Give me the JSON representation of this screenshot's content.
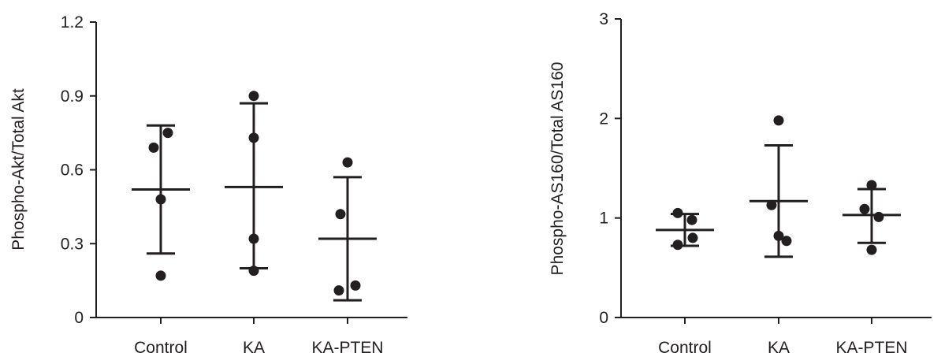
{
  "chart_data": [
    {
      "type": "scatter",
      "title": "",
      "xlabel": "",
      "ylabel": "Phospho-Akt/Total Akt",
      "ylim": [
        0,
        1.2
      ],
      "yticks": [
        "0",
        "0.3",
        "0.6",
        "0.9",
        "1.2"
      ],
      "ytick_values": [
        0,
        0.3,
        0.6,
        0.9,
        1.2
      ],
      "categories": [
        "Control",
        "KA",
        "KA-PTEN"
      ],
      "groups": [
        {
          "category": "Control",
          "points": [
            0.69,
            0.75,
            0.48,
            0.17
          ],
          "mean": 0.52,
          "upper": 0.78,
          "lower": 0.26
        },
        {
          "category": "KA",
          "points": [
            0.9,
            0.73,
            0.32,
            0.19
          ],
          "mean": 0.53,
          "upper": 0.87,
          "lower": 0.2
        },
        {
          "category": "KA-PTEN",
          "points": [
            0.63,
            0.42,
            0.11,
            0.13
          ],
          "mean": 0.32,
          "upper": 0.57,
          "lower": 0.07
        }
      ],
      "grid": false,
      "colors": {
        "marker": "#231f20",
        "axis": "#231f20"
      }
    },
    {
      "type": "scatter",
      "title": "",
      "xlabel": "",
      "ylabel": "Phospho-AS160/Total AS160",
      "ylim": [
        0,
        3
      ],
      "yticks": [
        "0",
        "1",
        "2",
        "3"
      ],
      "ytick_values": [
        0,
        1,
        2,
        3
      ],
      "categories": [
        "Control",
        "KA",
        "KA-PTEN"
      ],
      "groups": [
        {
          "category": "Control",
          "points": [
            1.05,
            0.98,
            0.8,
            0.73
          ],
          "mean": 0.88,
          "upper": 1.04,
          "lower": 0.72
        },
        {
          "category": "KA",
          "points": [
            1.98,
            1.13,
            0.82,
            0.77
          ],
          "mean": 1.17,
          "upper": 1.73,
          "lower": 0.61
        },
        {
          "category": "KA-PTEN",
          "points": [
            1.33,
            1.09,
            1.01,
            0.68
          ],
          "mean": 1.03,
          "upper": 1.29,
          "lower": 0.75
        }
      ],
      "grid": false,
      "colors": {
        "marker": "#231f20",
        "axis": "#231f20"
      }
    }
  ]
}
